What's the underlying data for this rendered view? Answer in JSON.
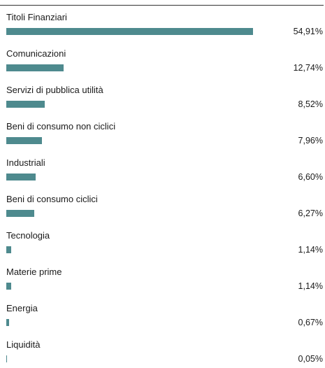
{
  "chart_data": {
    "type": "bar",
    "orientation": "horizontal",
    "bar_color": "#4e8a8e",
    "categories": [
      "Titoli Finanziari",
      "Comunicazioni",
      "Servizi di pubblica utilità",
      "Beni di consumo non ciclici",
      "Industriali",
      "Beni di consumo ciclici",
      "Tecnologia",
      "Materie prime",
      "Energia",
      "Liquidità"
    ],
    "values": [
      54.91,
      12.74,
      8.52,
      7.96,
      6.6,
      6.27,
      1.14,
      1.14,
      0.67,
      0.05
    ],
    "value_labels": [
      "54,91%",
      "12,74%",
      "8,52%",
      "7,96%",
      "6,60%",
      "6,27%",
      "1,14%",
      "1,14%",
      "0,67%",
      "0,05%"
    ],
    "xlim": [
      0,
      54.91
    ],
    "grid": false,
    "legend": "none"
  }
}
